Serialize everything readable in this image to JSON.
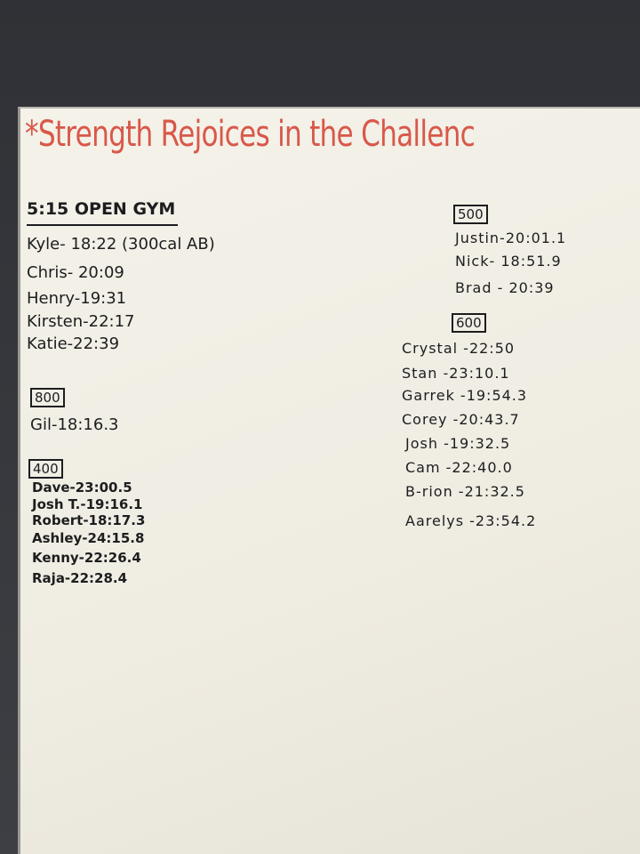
{
  "title": "*Strength Rejoices in the Challenc",
  "left": {
    "heading": "5:15 OPEN GYM",
    "entries": [
      "Kyle- 18:22 (300cal AB)",
      "Chris- 20:09",
      "Henry-19:31",
      "Kirsten-22:17",
      "Katie-22:39"
    ],
    "groups": [
      {
        "label": "800",
        "entries": [
          "Gil-18:16.3"
        ]
      },
      {
        "label": "400",
        "entries": [
          "Dave-23:00.5",
          "Josh T.-19:16.1",
          "Robert-18:17.3",
          "Ashley-24:15.8",
          "Kenny-22:26.4",
          "Raja-22:28.4"
        ]
      }
    ]
  },
  "right": {
    "groups": [
      {
        "label": "500",
        "entries": [
          "Justin-20:01.1",
          "Nick- 18:51.9",
          "Brad - 20:39"
        ]
      },
      {
        "label": "600",
        "entries": [
          "Crystal -22:50",
          "Stan -23:10.1",
          "Garrek -19:54.3",
          "Corey -20:43.7",
          "Josh -19:32.5",
          "Cam -22:40.0",
          "B-rion -21:32.5",
          "Aarelys -23:54.2"
        ]
      }
    ]
  }
}
